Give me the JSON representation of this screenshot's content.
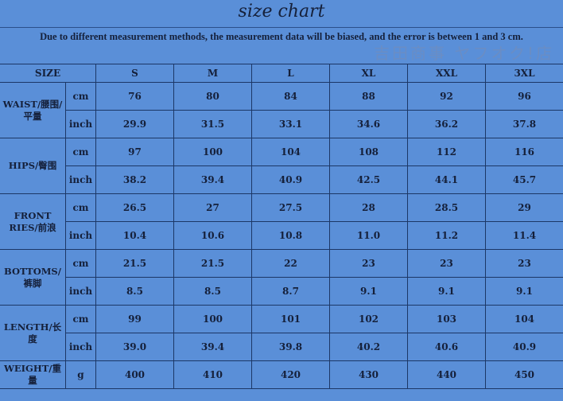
{
  "title": "size chart",
  "note": "Due to different measurement methods, the measurement data will be biased, and the error is between 1 and 3 cm.",
  "header": {
    "size": "SIZE",
    "sizes": [
      "S",
      "M",
      "L",
      "XL",
      "XXL",
      "3XL"
    ]
  },
  "rows": [
    {
      "label": "WAIST/腰围/平量",
      "units": [
        {
          "unit": "cm",
          "values": [
            "76",
            "80",
            "84",
            "88",
            "92",
            "96"
          ]
        },
        {
          "unit": "inch",
          "values": [
            "29.9",
            "31.5",
            "33.1",
            "34.6",
            "36.2",
            "37.8"
          ]
        }
      ]
    },
    {
      "label": "HIPS/臀围",
      "units": [
        {
          "unit": "cm",
          "values": [
            "97",
            "100",
            "104",
            "108",
            "112",
            "116"
          ]
        },
        {
          "unit": "inch",
          "values": [
            "38.2",
            "39.4",
            "40.9",
            "42.5",
            "44.1",
            "45.7"
          ]
        }
      ]
    },
    {
      "label": "FRONT RIES/前浪",
      "units": [
        {
          "unit": "cm",
          "values": [
            "26.5",
            "27",
            "27.5",
            "28",
            "28.5",
            "29"
          ]
        },
        {
          "unit": "inch",
          "values": [
            "10.4",
            "10.6",
            "10.8",
            "11.0",
            "11.2",
            "11.4"
          ]
        }
      ]
    },
    {
      "label": "BOTTOMS/裤脚",
      "units": [
        {
          "unit": "cm",
          "values": [
            "21.5",
            "21.5",
            "22",
            "23",
            "23",
            "23"
          ]
        },
        {
          "unit": "inch",
          "values": [
            "8.5",
            "8.5",
            "8.7",
            "9.1",
            "9.1",
            "9.1"
          ]
        }
      ]
    },
    {
      "label": "LENGTH/长度",
      "units": [
        {
          "unit": "cm",
          "values": [
            "99",
            "100",
            "101",
            "102",
            "103",
            "104"
          ]
        },
        {
          "unit": "inch",
          "values": [
            "39.0",
            "39.4",
            "39.8",
            "40.2",
            "40.6",
            "40.9"
          ]
        }
      ]
    },
    {
      "label": "WEIGHT/重量",
      "units": [
        {
          "unit": "g",
          "values": [
            "400",
            "410",
            "420",
            "430",
            "440",
            "450"
          ]
        }
      ]
    }
  ],
  "watermark": "吉田商事 ヤフオク!店"
}
